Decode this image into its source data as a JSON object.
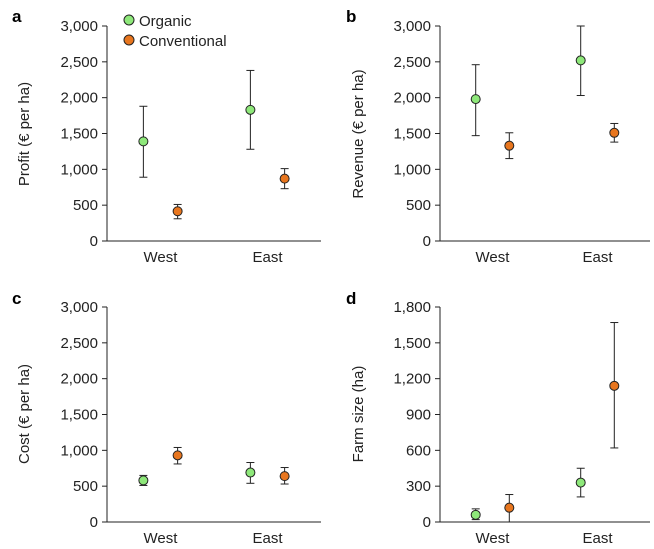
{
  "legend": {
    "placement": "top-left, panel a",
    "items": [
      {
        "label": "Organic",
        "color": "#8ee87a"
      },
      {
        "label": "Conventional",
        "color": "#e8761e"
      }
    ]
  },
  "chart_data": [
    {
      "type": "scatter",
      "panel": "a",
      "ylabel": "Profit (€ per ha)",
      "categories": [
        "West",
        "East"
      ],
      "ylim": [
        0,
        3000
      ],
      "yticks": [
        0,
        500,
        1000,
        1500,
        2000,
        2500,
        3000
      ],
      "ytick_labels": [
        "0",
        "500",
        "1,000",
        "1,500",
        "2,000",
        "2,500",
        "3,000"
      ],
      "series": [
        {
          "name": "Organic",
          "color": "#8ee87a",
          "values": [
            1390,
            1830
          ],
          "err_low": [
            890,
            1280
          ],
          "err_high": [
            1880,
            2380
          ]
        },
        {
          "name": "Conventional",
          "color": "#e8761e",
          "values": [
            415,
            870
          ],
          "err_low": [
            310,
            730
          ],
          "err_high": [
            510,
            1010
          ]
        }
      ]
    },
    {
      "type": "scatter",
      "panel": "b",
      "ylabel": "Revenue (€ per ha)",
      "categories": [
        "West",
        "East"
      ],
      "ylim": [
        0,
        3000
      ],
      "yticks": [
        0,
        500,
        1000,
        1500,
        2000,
        2500,
        3000
      ],
      "ytick_labels": [
        "0",
        "500",
        "1,000",
        "1,500",
        "2,000",
        "2,500",
        "3,000"
      ],
      "series": [
        {
          "name": "Organic",
          "color": "#8ee87a",
          "values": [
            1980,
            2520
          ],
          "err_low": [
            1470,
            2030
          ],
          "err_high": [
            2460,
            3000
          ]
        },
        {
          "name": "Conventional",
          "color": "#e8761e",
          "values": [
            1330,
            1510
          ],
          "err_low": [
            1150,
            1380
          ],
          "err_high": [
            1510,
            1640
          ]
        }
      ]
    },
    {
      "type": "scatter",
      "panel": "c",
      "ylabel": "Cost (€ per ha)",
      "categories": [
        "West",
        "East"
      ],
      "ylim": [
        0,
        3000
      ],
      "yticks": [
        0,
        500,
        1000,
        1500,
        2000,
        2500,
        3000
      ],
      "ytick_labels": [
        "0",
        "500",
        "1,000",
        "1,500",
        "2,000",
        "2,500",
        "3,000"
      ],
      "series": [
        {
          "name": "Organic",
          "color": "#8ee87a",
          "values": [
            580,
            690
          ],
          "err_low": [
            510,
            540
          ],
          "err_high": [
            650,
            830
          ]
        },
        {
          "name": "Conventional",
          "color": "#e8761e",
          "values": [
            930,
            640
          ],
          "err_low": [
            810,
            530
          ],
          "err_high": [
            1040,
            760
          ]
        }
      ]
    },
    {
      "type": "scatter",
      "panel": "d",
      "ylabel": "Farm size (ha)",
      "categories": [
        "West",
        "East"
      ],
      "ylim": [
        0,
        1800
      ],
      "yticks": [
        0,
        300,
        600,
        900,
        1200,
        1500,
        1800
      ],
      "ytick_labels": [
        "0",
        "300",
        "600",
        "900",
        "1,200",
        "1,500",
        "1,800"
      ],
      "series": [
        {
          "name": "Organic",
          "color": "#8ee87a",
          "values": [
            60,
            330
          ],
          "err_low": [
            20,
            210
          ],
          "err_high": [
            110,
            450
          ]
        },
        {
          "name": "Conventional",
          "color": "#e8761e",
          "values": [
            120,
            1140
          ],
          "err_low": [
            0,
            620
          ],
          "err_high": [
            230,
            1670
          ]
        }
      ]
    }
  ]
}
